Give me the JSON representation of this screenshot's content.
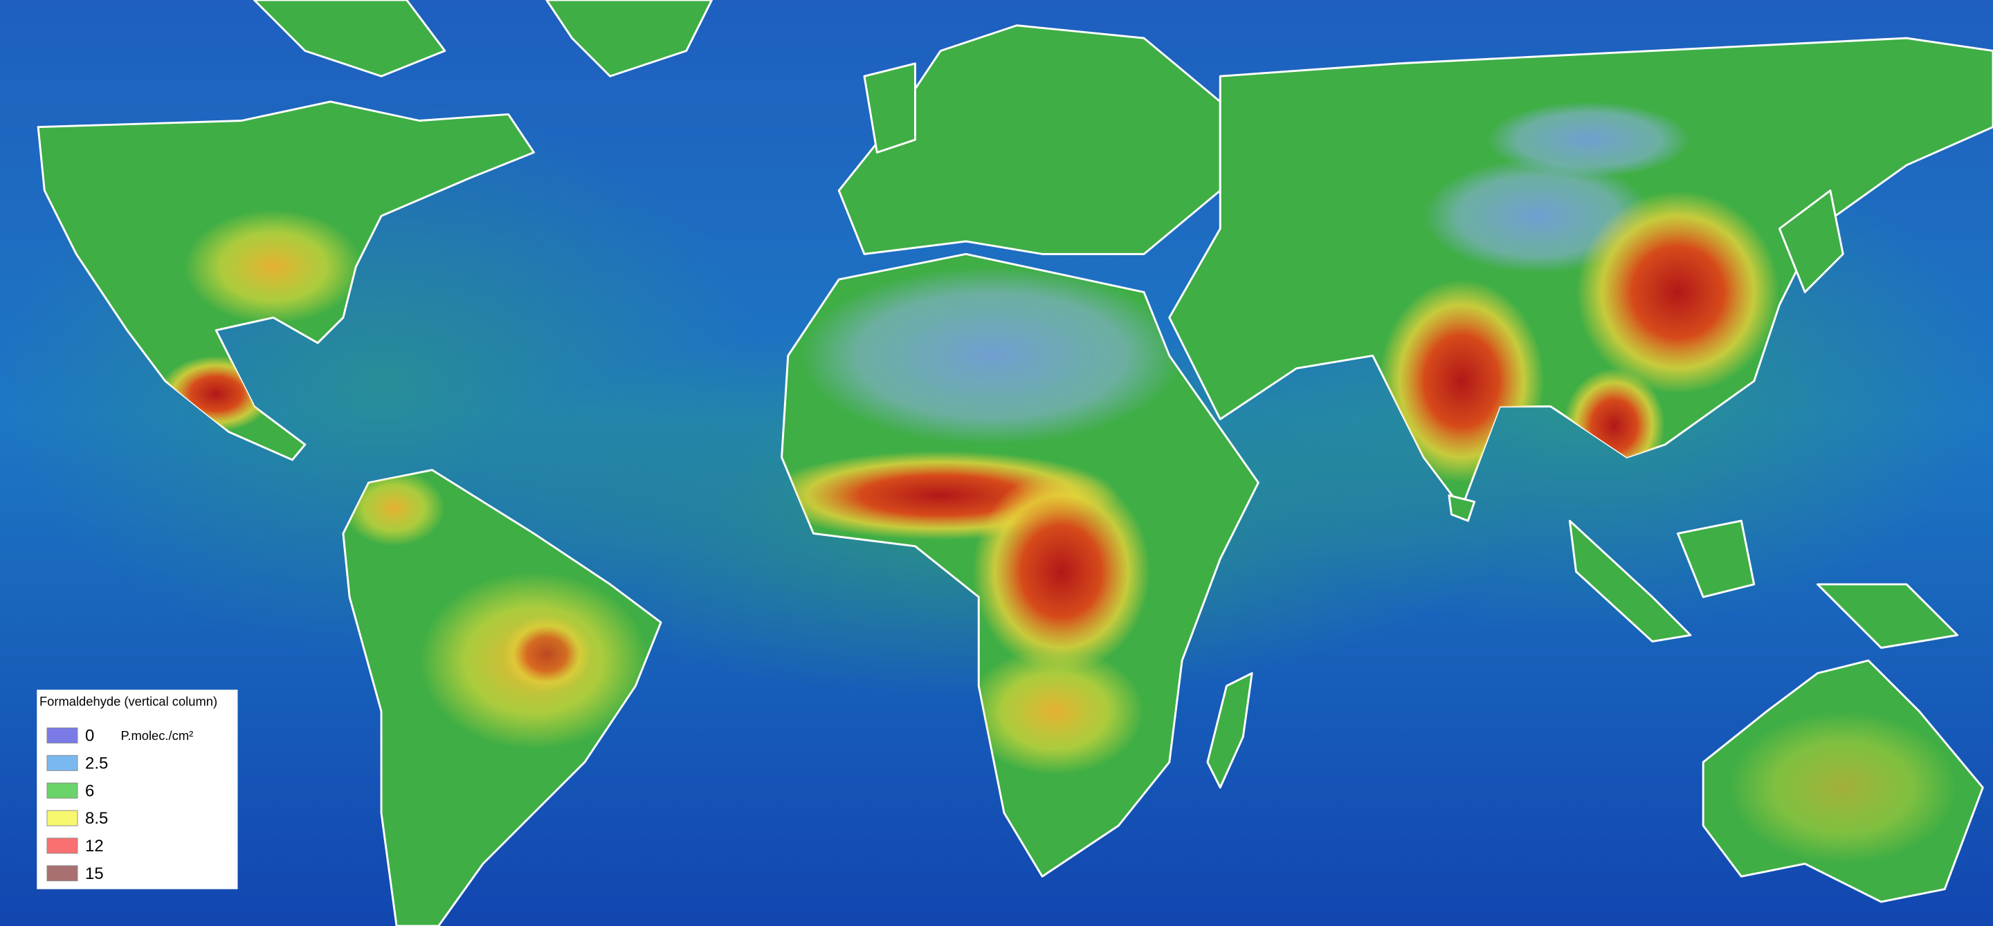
{
  "legend": {
    "title": "Formaldehyde (vertical column)",
    "unit": "P.molec./cm²",
    "items": [
      {
        "label": "0",
        "color": "#7b7be8"
      },
      {
        "label": "2.5",
        "color": "#7ab8f0"
      },
      {
        "label": "6",
        "color": "#6ad46a"
      },
      {
        "label": "8.5",
        "color": "#f8f870"
      },
      {
        "label": "12",
        "color": "#f87070"
      },
      {
        "label": "15",
        "color": "#a87070"
      }
    ]
  }
}
